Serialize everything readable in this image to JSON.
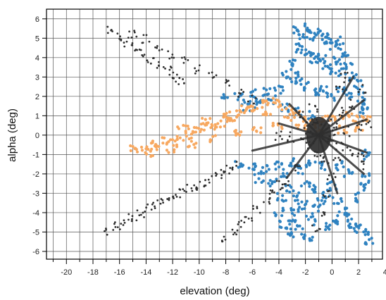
{
  "chart_data": {
    "type": "scatter",
    "title": "",
    "xlabel": "elevation (deg)",
    "ylabel": "alpha (deg)",
    "xlim": [
      -21.5,
      3.8
    ],
    "ylim": [
      -6.4,
      6.5
    ],
    "xticks": [
      -20,
      -18,
      -16,
      -14,
      -12,
      -10,
      -8,
      -6,
      -4,
      -2,
      0,
      2,
      4
    ],
    "yticks": [
      -6,
      -5,
      -4,
      -3,
      -2,
      -1,
      0,
      1,
      2,
      3,
      4,
      5,
      6
    ],
    "grid": true,
    "legend": "none",
    "colors": {
      "blue": "#2f82c0",
      "orange": "#f7a860",
      "black": "#2e2e2e",
      "grid": "#555555"
    },
    "series": [
      {
        "color": "blue",
        "description_points": [
          [
            -2.6,
            5.4
          ],
          [
            -2.2,
            5.2
          ],
          [
            -1.8,
            5.5
          ],
          [
            -1.4,
            5.1
          ],
          [
            -1.0,
            5.3
          ],
          [
            -0.6,
            5.0
          ],
          [
            -0.2,
            4.8
          ],
          [
            0.2,
            4.6
          ],
          [
            0.6,
            4.9
          ],
          [
            1.0,
            4.3
          ],
          [
            -2.4,
            4.5
          ],
          [
            -2.0,
            4.2
          ],
          [
            -1.6,
            4.0
          ],
          [
            -1.2,
            3.8
          ],
          [
            -0.8,
            4.1
          ],
          [
            -0.4,
            3.6
          ],
          [
            0.0,
            3.4
          ],
          [
            0.4,
            3.9
          ],
          [
            0.8,
            3.2
          ],
          [
            1.2,
            3.6
          ],
          [
            1.6,
            3.0
          ],
          [
            2.0,
            2.6
          ],
          [
            -3.0,
            3.8
          ],
          [
            -3.4,
            3.2
          ],
          [
            -2.8,
            3.0
          ],
          [
            -2.4,
            2.8
          ],
          [
            -1.8,
            2.5
          ],
          [
            -1.2,
            2.2
          ],
          [
            -0.6,
            2.4
          ],
          [
            0.0,
            2.0
          ],
          [
            0.6,
            2.3
          ],
          [
            1.4,
            2.1
          ],
          [
            2.2,
            2.0
          ],
          [
            2.6,
            1.6
          ],
          [
            -4.0,
            2.4
          ],
          [
            -5.0,
            2.2
          ],
          [
            -6.0,
            2.1
          ],
          [
            -7.0,
            2.0
          ],
          [
            -8.0,
            2.1
          ],
          [
            -4.5,
            1.8
          ],
          [
            -5.5,
            1.6
          ],
          [
            -6.5,
            1.5
          ],
          [
            -3.5,
            1.4
          ],
          [
            -2.5,
            1.2
          ],
          [
            -1.5,
            1.0
          ],
          [
            -3.0,
            -1.4
          ],
          [
            -4.0,
            -1.6
          ],
          [
            -5.0,
            -1.8
          ],
          [
            -6.0,
            -1.6
          ],
          [
            -7.0,
            -1.5
          ],
          [
            -5.5,
            -2.2
          ],
          [
            -4.5,
            -2.4
          ],
          [
            -3.5,
            -2.0
          ],
          [
            -2.5,
            -1.8
          ],
          [
            -3.2,
            -2.8
          ],
          [
            -2.6,
            -3.2
          ],
          [
            -2.2,
            -3.6
          ],
          [
            -2.8,
            -4.0
          ],
          [
            -3.0,
            -4.6
          ],
          [
            -2.4,
            -4.9
          ],
          [
            -1.8,
            -5.2
          ],
          [
            -1.6,
            -4.4
          ],
          [
            -1.2,
            -3.8
          ],
          [
            -0.8,
            -3.4
          ],
          [
            -0.4,
            -3.0
          ],
          [
            0.0,
            -2.6
          ],
          [
            0.4,
            -3.4
          ],
          [
            0.8,
            -3.9
          ],
          [
            1.2,
            -4.2
          ],
          [
            1.6,
            -4.6
          ],
          [
            2.0,
            -4.8
          ],
          [
            2.4,
            -5.0
          ],
          [
            2.8,
            -5.4
          ],
          [
            1.8,
            -3.2
          ],
          [
            2.2,
            -2.6
          ],
          [
            2.6,
            -2.2
          ],
          [
            1.2,
            -2.0
          ],
          [
            0.6,
            -1.6
          ],
          [
            -0.6,
            -1.6
          ],
          [
            -1.6,
            -1.4
          ],
          [
            -3.8,
            -3.2
          ],
          [
            -4.0,
            -4.0
          ],
          [
            -3.6,
            -4.6
          ],
          [
            -3.2,
            -5.0
          ],
          [
            2.6,
            -1.0
          ],
          [
            2.4,
            1.2
          ],
          [
            -2.0,
            -2.4
          ],
          [
            -1.2,
            -2.8
          ],
          [
            0.2,
            -4.4
          ],
          [
            -0.2,
            -4.8
          ]
        ]
      },
      {
        "color": "orange",
        "description_points": [
          [
            -14.8,
            -0.7
          ],
          [
            -14.0,
            -0.6
          ],
          [
            -13.2,
            -0.5
          ],
          [
            -12.4,
            -0.3
          ],
          [
            -11.6,
            -0.2
          ],
          [
            -10.8,
            0.0
          ],
          [
            -10.0,
            0.2
          ],
          [
            -9.2,
            0.4
          ],
          [
            -8.4,
            0.6
          ],
          [
            -7.6,
            0.9
          ],
          [
            -6.8,
            1.1
          ],
          [
            -6.0,
            1.3
          ],
          [
            -5.2,
            1.6
          ],
          [
            -4.4,
            1.7
          ],
          [
            -3.6,
            1.5
          ],
          [
            -2.8,
            1.2
          ],
          [
            -2.0,
            0.9
          ],
          [
            -1.2,
            0.7
          ],
          [
            -0.4,
            0.8
          ],
          [
            0.4,
            0.9
          ],
          [
            1.2,
            1.0
          ],
          [
            2.0,
            0.8
          ],
          [
            2.6,
            0.9
          ],
          [
            -13.6,
            -0.9
          ],
          [
            -12.0,
            -0.7
          ],
          [
            -10.4,
            -0.5
          ],
          [
            -8.8,
            -0.2
          ],
          [
            -7.2,
            0.1
          ],
          [
            -5.6,
            0.3
          ],
          [
            -4.0,
            0.5
          ],
          [
            -2.4,
            0.4
          ],
          [
            -0.8,
            0.2
          ],
          [
            0.8,
            0.3
          ],
          [
            2.2,
            0.4
          ],
          [
            -11.2,
            0.4
          ],
          [
            -9.6,
            0.7
          ],
          [
            -8.0,
            1.0
          ],
          [
            -6.4,
            1.4
          ],
          [
            -4.8,
            1.2
          ],
          [
            -3.2,
            0.9
          ]
        ]
      },
      {
        "color": "black",
        "description_points": [
          [
            -16.6,
            5.4
          ],
          [
            -16.0,
            5.1
          ],
          [
            -15.4,
            4.8
          ],
          [
            -14.8,
            4.5
          ],
          [
            -14.2,
            4.2
          ],
          [
            -13.6,
            3.9
          ],
          [
            -13.0,
            3.6
          ],
          [
            -12.4,
            3.3
          ],
          [
            -11.8,
            3.0
          ],
          [
            -11.2,
            2.7
          ],
          [
            -15.0,
            5.2
          ],
          [
            -14.0,
            5.0
          ],
          [
            -13.0,
            4.6
          ],
          [
            -12.0,
            4.2
          ],
          [
            -11.0,
            3.8
          ],
          [
            -10.0,
            3.4
          ],
          [
            -9.0,
            3.0
          ],
          [
            -8.0,
            2.6
          ],
          [
            -7.0,
            2.2
          ],
          [
            -6.0,
            1.8
          ],
          [
            -16.8,
            -4.9
          ],
          [
            -16.2,
            -4.7
          ],
          [
            -15.6,
            -4.4
          ],
          [
            -15.0,
            -4.2
          ],
          [
            -14.4,
            -4.0
          ],
          [
            -13.8,
            -3.8
          ],
          [
            -13.2,
            -3.6
          ],
          [
            -12.6,
            -3.4
          ],
          [
            -12.0,
            -3.2
          ],
          [
            -11.4,
            -3.0
          ],
          [
            -10.8,
            -2.8
          ],
          [
            -10.2,
            -2.6
          ],
          [
            -9.6,
            -2.4
          ],
          [
            -9.0,
            -2.2
          ],
          [
            -8.4,
            -2.0
          ],
          [
            -7.8,
            -1.8
          ],
          [
            -7.2,
            -1.6
          ],
          [
            -8.0,
            -5.4
          ],
          [
            -7.4,
            -5.0
          ],
          [
            -6.8,
            -4.6
          ],
          [
            -6.2,
            -4.2
          ],
          [
            -5.6,
            -3.8
          ],
          [
            -5.0,
            -3.4
          ],
          [
            -4.4,
            -3.0
          ],
          [
            -3.8,
            -2.6
          ],
          [
            -4.0,
            0.0
          ],
          [
            -3.0,
            -0.1
          ],
          [
            -2.0,
            -0.2
          ],
          [
            -1.0,
            -0.1
          ],
          [
            0.0,
            0.1
          ],
          [
            1.0,
            0.2
          ],
          [
            2.0,
            0.4
          ],
          [
            2.6,
            0.6
          ],
          [
            -1.0,
            0.8
          ],
          [
            -1.0,
            -0.9
          ],
          [
            -0.5,
            0.5
          ],
          [
            -1.5,
            -0.5
          ],
          [
            -0.2,
            -0.4
          ],
          [
            -1.8,
            0.3
          ],
          [
            0.6,
            -0.6
          ],
          [
            1.4,
            -0.8
          ],
          [
            2.2,
            -1.0
          ],
          [
            1.6,
            1.6
          ],
          [
            2.2,
            2.4
          ],
          [
            0.8,
            1.2
          ],
          [
            0.4,
            -1.4
          ],
          [
            0.0,
            -2.2
          ],
          [
            -0.4,
            -3.0
          ],
          [
            -0.8,
            -4.0
          ],
          [
            -1.2,
            -4.8
          ],
          [
            1.0,
            3.0
          ],
          [
            0.6,
            2.6
          ],
          [
            -2.6,
            -1.6
          ],
          [
            -3.4,
            -2.4
          ],
          [
            2.4,
            -1.6
          ],
          [
            -1.4,
            1.4
          ],
          [
            -2.2,
            1.0
          ],
          [
            -0.6,
            -1.2
          ],
          [
            -1.6,
            0.6
          ],
          [
            0.2,
            0.6
          ]
        ]
      }
    ]
  }
}
